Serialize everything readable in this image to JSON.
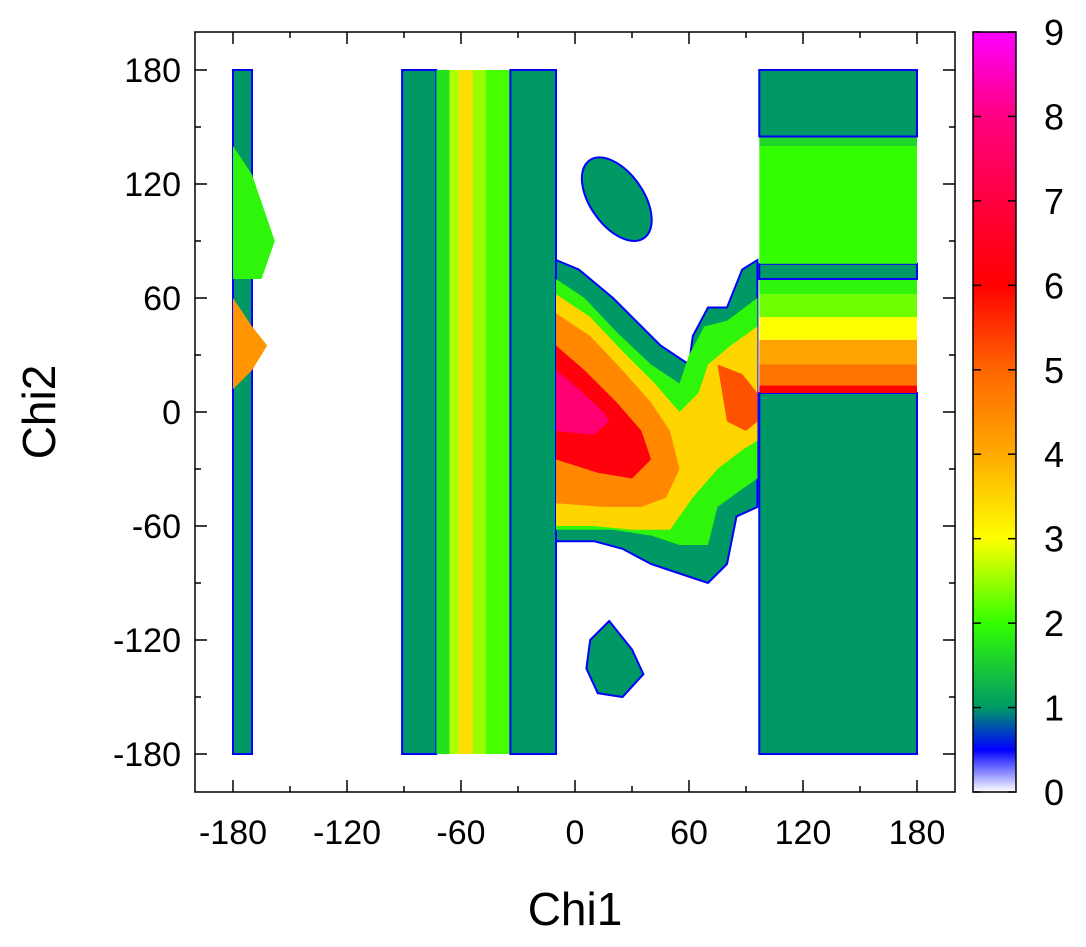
{
  "chart_data": {
    "type": "heatmap",
    "title": "",
    "xlabel": "Chi1",
    "ylabel": "Chi2",
    "xlim": [
      -200,
      200
    ],
    "ylim": [
      -200,
      200
    ],
    "x_ticks": [
      "-180",
      "-120",
      "-60",
      "0",
      "60",
      "120",
      "180"
    ],
    "y_ticks": [
      "-180",
      "-120",
      "-60",
      "0",
      "60",
      "120",
      "180"
    ],
    "colorbar": {
      "range": [
        0,
        9
      ],
      "ticks": [
        "0",
        "1",
        "2",
        "3",
        "4",
        "5",
        "6",
        "7",
        "8",
        "9"
      ],
      "colors": {
        "0": "#ffffff",
        "0.5": "#0000ff",
        "1": "#009966",
        "2": "#33ff00",
        "3": "#ffff00",
        "4": "#ffaa00",
        "5": "#ff6600",
        "6": "#ff0000",
        "8": "#ff0080",
        "9": "#ff00ff"
      }
    },
    "regions": [
      {
        "name": "band-x-175",
        "shape": "rect",
        "x": [
          -180,
          -170
        ],
        "y": [
          -180,
          180
        ],
        "value": 1.0
      },
      {
        "name": "band-x-175-top",
        "shape": "poly",
        "points": [
          [
            -180,
            140
          ],
          [
            -170,
            125
          ],
          [
            -158,
            90
          ],
          [
            -165,
            70
          ],
          [
            -180,
            70
          ]
        ],
        "value": 1.9
      },
      {
        "name": "band-x-175-mid",
        "shape": "poly",
        "points": [
          [
            -180,
            12
          ],
          [
            -180,
            60
          ],
          [
            -170,
            45
          ],
          [
            -162,
            35
          ],
          [
            -170,
            22
          ]
        ],
        "value": 4.3
      },
      {
        "name": "band-x-88",
        "shape": "rect",
        "x": [
          -91,
          -73
        ],
        "y": [
          -180,
          180
        ],
        "value": 1.0
      },
      {
        "name": "band-x-68",
        "shape": "rect",
        "x": [
          -73,
          -66
        ],
        "y": [
          -180,
          180
        ],
        "value": 1.7
      },
      {
        "name": "band-x-62",
        "shape": "rect",
        "x": [
          -66,
          -61
        ],
        "y": [
          -180,
          180
        ],
        "value": 2.6
      },
      {
        "name": "band-x-58",
        "shape": "rect",
        "x": [
          -61,
          -54
        ],
        "y": [
          -180,
          180
        ],
        "value": 3.4
      },
      {
        "name": "band-x-50",
        "shape": "rect",
        "x": [
          -54,
          -47
        ],
        "y": [
          -180,
          180
        ],
        "value": 2.5
      },
      {
        "name": "band-x-40",
        "shape": "rect",
        "x": [
          -47,
          -34
        ],
        "y": [
          -180,
          180
        ],
        "value": 2.1
      },
      {
        "name": "band-x-22",
        "shape": "rect",
        "x": [
          -34,
          -10
        ],
        "y": [
          -180,
          180
        ],
        "value": 1.0
      },
      {
        "name": "island-upper",
        "shape": "ellipse",
        "cx": 22,
        "cy": 112,
        "rx": 14,
        "ry": 25,
        "rot": -35,
        "value": 1.0
      },
      {
        "name": "island-lower",
        "shape": "poly",
        "points": [
          [
            8,
            -120
          ],
          [
            18,
            -110
          ],
          [
            30,
            -125
          ],
          [
            36,
            -138
          ],
          [
            25,
            -150
          ],
          [
            12,
            -148
          ],
          [
            6,
            -135
          ]
        ],
        "value": 1.0
      },
      {
        "name": "central-outer",
        "shape": "poly",
        "points": [
          [
            -10,
            80
          ],
          [
            2,
            75
          ],
          [
            20,
            60
          ],
          [
            45,
            35
          ],
          [
            60,
            25
          ],
          [
            62,
            40
          ],
          [
            70,
            55
          ],
          [
            80,
            55
          ],
          [
            88,
            75
          ],
          [
            96,
            80
          ],
          [
            96,
            -50
          ],
          [
            85,
            -55
          ],
          [
            80,
            -80
          ],
          [
            70,
            -90
          ],
          [
            55,
            -85
          ],
          [
            40,
            -80
          ],
          [
            25,
            -72
          ],
          [
            10,
            -68
          ],
          [
            -10,
            -68
          ]
        ],
        "value": 1.0
      },
      {
        "name": "central-green",
        "shape": "poly",
        "points": [
          [
            -10,
            70
          ],
          [
            5,
            60
          ],
          [
            22,
            42
          ],
          [
            40,
            25
          ],
          [
            55,
            15
          ],
          [
            60,
            30
          ],
          [
            68,
            45
          ],
          [
            80,
            48
          ],
          [
            96,
            60
          ],
          [
            96,
            -35
          ],
          [
            86,
            -42
          ],
          [
            75,
            -50
          ],
          [
            70,
            -70
          ],
          [
            55,
            -70
          ],
          [
            40,
            -65
          ],
          [
            20,
            -62
          ],
          [
            0,
            -62
          ],
          [
            -10,
            -62
          ]
        ],
        "value": 1.9
      },
      {
        "name": "central-yellow",
        "shape": "poly",
        "points": [
          [
            -10,
            62
          ],
          [
            8,
            50
          ],
          [
            25,
            32
          ],
          [
            42,
            15
          ],
          [
            55,
            0
          ],
          [
            65,
            10
          ],
          [
            70,
            25
          ],
          [
            82,
            35
          ],
          [
            96,
            45
          ],
          [
            96,
            -15
          ],
          [
            88,
            -20
          ],
          [
            75,
            -30
          ],
          [
            62,
            -45
          ],
          [
            50,
            -62
          ],
          [
            30,
            -62
          ],
          [
            10,
            -60
          ],
          [
            -10,
            -60
          ]
        ],
        "value": 3.5
      },
      {
        "name": "central-orange",
        "shape": "poly",
        "points": [
          [
            -10,
            52
          ],
          [
            8,
            40
          ],
          [
            25,
            22
          ],
          [
            40,
            5
          ],
          [
            50,
            -10
          ],
          [
            55,
            -30
          ],
          [
            48,
            -45
          ],
          [
            35,
            -50
          ],
          [
            15,
            -50
          ],
          [
            -10,
            -48
          ]
        ],
        "value": 4.5
      },
      {
        "name": "central-red",
        "shape": "poly",
        "points": [
          [
            -10,
            35
          ],
          [
            5,
            22
          ],
          [
            22,
            5
          ],
          [
            35,
            -10
          ],
          [
            40,
            -25
          ],
          [
            30,
            -35
          ],
          [
            12,
            -32
          ],
          [
            -10,
            -25
          ]
        ],
        "value": 6.2
      },
      {
        "name": "central-pink",
        "shape": "poly",
        "points": [
          [
            -10,
            22
          ],
          [
            2,
            12
          ],
          [
            15,
            0
          ],
          [
            18,
            -5
          ],
          [
            10,
            -12
          ],
          [
            -10,
            -10
          ]
        ],
        "value": 7.8
      },
      {
        "name": "right-patch-red",
        "shape": "poly",
        "points": [
          [
            75,
            25
          ],
          [
            88,
            20
          ],
          [
            96,
            10
          ],
          [
            96,
            -5
          ],
          [
            90,
            -10
          ],
          [
            80,
            -5
          ]
        ],
        "value": 5.2
      },
      {
        "name": "band-y-bottom",
        "shape": "rect",
        "x": [
          97,
          180
        ],
        "y": [
          -180,
          10
        ],
        "value": 1.0
      },
      {
        "name": "band-y-10",
        "shape": "rect",
        "x": [
          97,
          180
        ],
        "y": [
          10,
          14
        ],
        "value": 6.0
      },
      {
        "name": "band-y-20",
        "shape": "rect",
        "x": [
          97,
          180
        ],
        "y": [
          14,
          25
        ],
        "value": 4.8
      },
      {
        "name": "band-y-32",
        "shape": "rect",
        "x": [
          97,
          180
        ],
        "y": [
          25,
          38
        ],
        "value": 4.1
      },
      {
        "name": "band-y-45",
        "shape": "rect",
        "x": [
          97,
          180
        ],
        "y": [
          38,
          50
        ],
        "value": 3.0
      },
      {
        "name": "band-y-58",
        "shape": "rect",
        "x": [
          97,
          180
        ],
        "y": [
          50,
          62
        ],
        "value": 2.3
      },
      {
        "name": "band-y-66",
        "shape": "rect",
        "x": [
          97,
          180
        ],
        "y": [
          62,
          70
        ],
        "value": 1.9
      },
      {
        "name": "band-y-77",
        "shape": "rect",
        "x": [
          97,
          180
        ],
        "y": [
          70,
          78
        ],
        "value": 1.0
      },
      {
        "name": "band-y-110",
        "shape": "rect",
        "x": [
          97,
          180
        ],
        "y": [
          78,
          140
        ],
        "value": 2.0
      },
      {
        "name": "band-y-143",
        "shape": "rect",
        "x": [
          97,
          180
        ],
        "y": [
          140,
          145
        ],
        "value": 1.6
      },
      {
        "name": "band-y-162",
        "shape": "rect",
        "x": [
          97,
          180
        ],
        "y": [
          145,
          180
        ],
        "value": 1.0
      }
    ]
  }
}
